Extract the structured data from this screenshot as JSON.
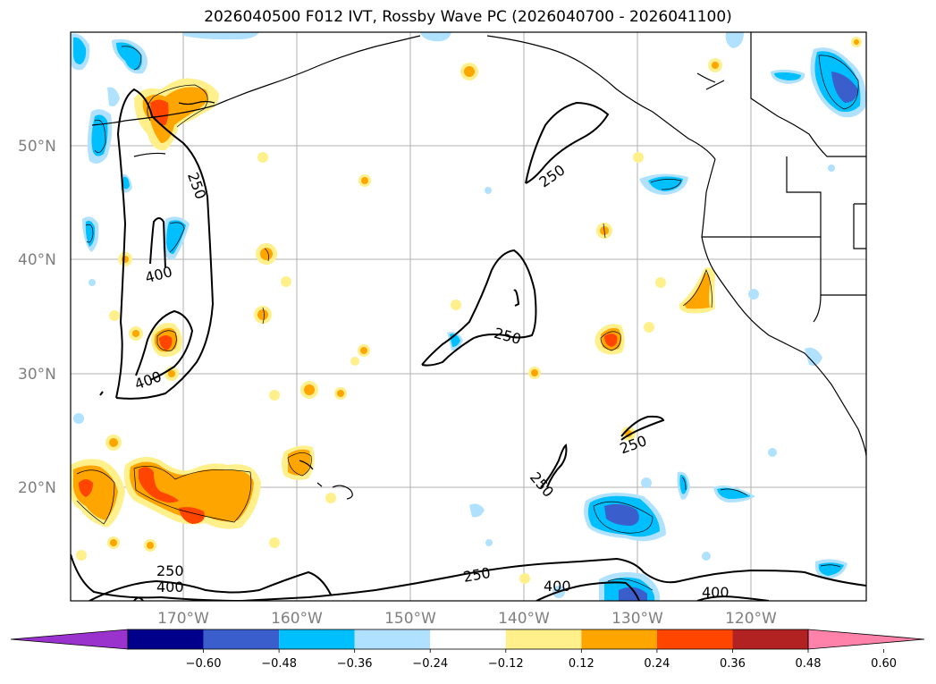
{
  "title": "2026040500 F012 IVT, Rossby Wave PC (2026040700 - 2026041100)",
  "lat_labels": [
    "50°N",
    "40°N",
    "30°N",
    "20°N"
  ],
  "lon_labels": [
    "170°W",
    "160°W",
    "150°W",
    "140°W",
    "130°W",
    "120°W"
  ],
  "colorbar": {
    "ticks": [
      "−0.60",
      "−0.48",
      "−0.36",
      "−0.24",
      "−0.12",
      "0.12",
      "0.24",
      "0.36",
      "0.48",
      "0.60"
    ],
    "colors": [
      "#9a32cd",
      "#00008b",
      "#3a5fcd",
      "#00bfff",
      "#b0e2ff",
      "#ffffff",
      "#fff08c",
      "#ffa500",
      "#ff4500",
      "#b22222",
      "#ff82ab"
    ]
  },
  "contour_labels": {
    "c1": "250",
    "c2": "400",
    "c3": "400",
    "c4": "250",
    "c5": "250",
    "c6": "250",
    "c7": "250",
    "c8": "250",
    "c9": "400",
    "c10": "250",
    "c11": "400",
    "c12": "400"
  },
  "colors": {
    "neg_light": "#b0e2ff",
    "neg_mid": "#00bfff",
    "neg_dark": "#3a5fcd",
    "pos_light": "#fff08c",
    "pos_mid": "#ffa500",
    "pos_dark": "#ff4500"
  }
}
